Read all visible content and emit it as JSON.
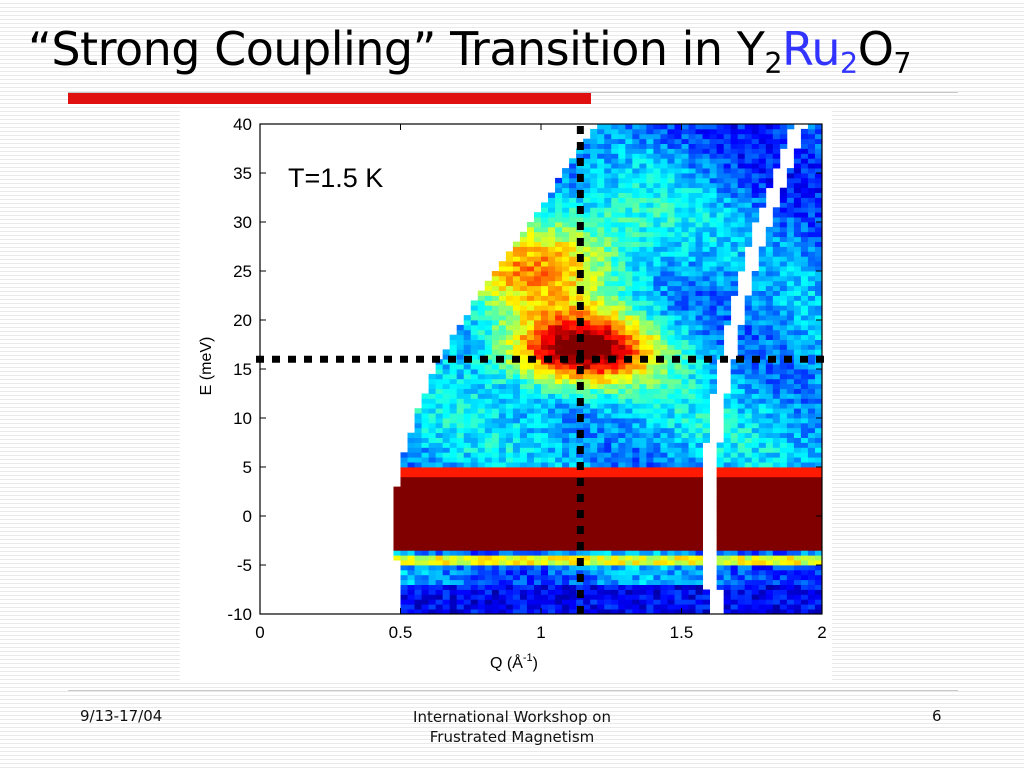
{
  "slide": {
    "title_parts": [
      "“Strong Coupling” Transition in Y",
      "2",
      "Ru",
      "2",
      "O",
      "7"
    ],
    "footer_date": "9/13-17/04",
    "footer_center_line1": "International Workshop on",
    "footer_center_line2": "Frustrated Magnetism",
    "page_number": "6"
  },
  "colors": {
    "accent_red": "#e01010",
    "ruthenium_blue": "#3333ff",
    "dotted_lines": "#000000"
  },
  "chart_data": {
    "type": "heatmap",
    "title": "",
    "annotation": "T=1.5 K",
    "xlabel": "Q (Å⁻¹)",
    "xlabel_base": "Q (Å",
    "xlabel_sup": "-1",
    "xlabel_end": ")",
    "ylabel": "E (meV)",
    "xlim": [
      0,
      2
    ],
    "ylim": [
      -10,
      40
    ],
    "xticks": [
      0,
      0.5,
      1,
      1.5,
      2
    ],
    "xtick_labels": [
      "0",
      "0.5",
      "1",
      "1.5",
      "2"
    ],
    "yticks": [
      -10,
      -5,
      0,
      5,
      10,
      15,
      20,
      25,
      30,
      35,
      40
    ],
    "ytick_labels": [
      "-10",
      "-5",
      "0",
      "5",
      "10",
      "15",
      "20",
      "25",
      "30",
      "35",
      "40"
    ],
    "colormap": "jet",
    "marker_lines": {
      "q": 1.14,
      "e": 16
    },
    "kinematic_limit_q_at_e": [
      {
        "e": -10,
        "q": 0.51
      },
      {
        "e": 0,
        "q": 0.47
      },
      {
        "e": 5,
        "q": 0.5
      },
      {
        "e": 10,
        "q": 0.55
      },
      {
        "e": 15,
        "q": 0.62
      },
      {
        "e": 20,
        "q": 0.72
      },
      {
        "e": 25,
        "q": 0.84
      },
      {
        "e": 30,
        "q": 0.96
      },
      {
        "e": 35,
        "q": 1.08
      },
      {
        "e": 40,
        "q": 1.2
      }
    ],
    "detector_gap_q_at_e": [
      {
        "e": -10,
        "q": 1.62
      },
      {
        "e": 0,
        "q": 1.59
      },
      {
        "e": 10,
        "q": 1.62
      },
      {
        "e": 20,
        "q": 1.69
      },
      {
        "e": 30,
        "q": 1.79
      },
      {
        "e": 40,
        "q": 1.92
      }
    ],
    "features": [
      {
        "name": "elastic band",
        "e_range": [
          -3.5,
          4.5
        ],
        "intensity": 1.0
      },
      {
        "name": "inelastic excitation",
        "q_center": 1.14,
        "e_center": 17,
        "intensity": 0.9
      }
    ]
  }
}
